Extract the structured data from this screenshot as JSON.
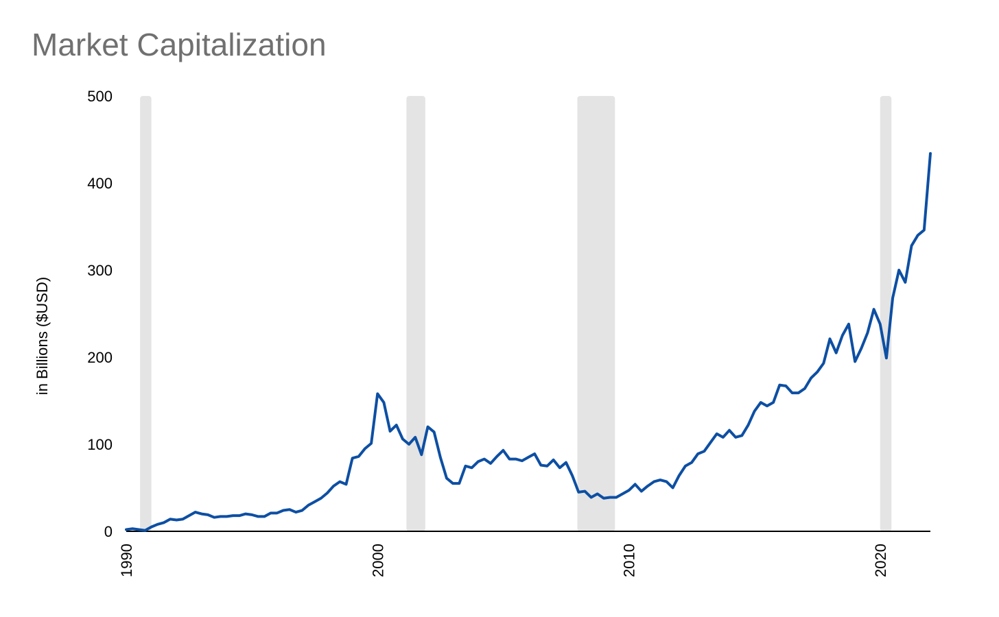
{
  "chart_data": {
    "type": "line",
    "title": "Market Capitalization",
    "xlabel": "",
    "ylabel": "in Billions ($USD)",
    "xlim": [
      1990,
      2022
    ],
    "ylim": [
      0,
      500
    ],
    "yticks": [
      0,
      100,
      200,
      300,
      400,
      500
    ],
    "xticks": [
      1990,
      2000,
      2010,
      2020
    ],
    "grid": false,
    "colors": {
      "line": "#0d4fa3",
      "recession": "#e4e4e4",
      "axis": "#000000"
    },
    "recessions": [
      {
        "start": 1990.55,
        "end": 1991.0
      },
      {
        "start": 2001.15,
        "end": 2001.9
      },
      {
        "start": 2007.95,
        "end": 2009.45
      },
      {
        "start": 2020.0,
        "end": 2020.45
      }
    ],
    "series": [
      {
        "x": [
          1990.0,
          1990.25,
          1990.5,
          1990.75,
          1991.0,
          1991.25,
          1991.5,
          1991.75,
          1992.0,
          1992.25,
          1992.5,
          1992.75,
          1993.0,
          1993.25,
          1993.5,
          1993.75,
          1994.0,
          1994.25,
          1994.5,
          1994.75,
          1995.0,
          1995.25,
          1995.5,
          1995.75,
          1996.0,
          1996.25,
          1996.5,
          1996.75,
          1997.0,
          1997.25,
          1997.5,
          1997.75,
          1998.0,
          1998.25,
          1998.5,
          1998.75,
          1999.0,
          1999.25,
          1999.5,
          1999.75,
          2000.0,
          2000.25,
          2000.5,
          2000.75,
          2001.0,
          2001.25,
          2001.5,
          2001.75,
          2002.0,
          2002.25,
          2002.5,
          2002.75,
          2003.0,
          2003.25,
          2003.5,
          2003.75,
          2004.0,
          2004.25,
          2004.5,
          2004.75,
          2005.0,
          2005.25,
          2005.5,
          2005.75,
          2006.0,
          2006.25,
          2006.5,
          2006.75,
          2007.0,
          2007.25,
          2007.5,
          2007.75,
          2008.0,
          2008.25,
          2008.5,
          2008.75,
          2009.0,
          2009.25,
          2009.5,
          2009.75,
          2010.0,
          2010.25,
          2010.5,
          2010.75,
          2011.0,
          2011.25,
          2011.5,
          2011.75,
          2012.0,
          2012.25,
          2012.5,
          2012.75,
          2013.0,
          2013.25,
          2013.5,
          2013.75,
          2014.0,
          2014.25,
          2014.5,
          2014.75,
          2015.0,
          2015.25,
          2015.5,
          2015.75,
          2016.0,
          2016.25,
          2016.5,
          2016.75,
          2017.0,
          2017.25,
          2017.5,
          2017.75,
          2018.0,
          2018.25,
          2018.5,
          2018.75,
          2019.0,
          2019.25,
          2019.5,
          2019.75,
          2020.0,
          2020.25,
          2020.5,
          2020.75,
          2021.0,
          2021.25,
          2021.5,
          2021.75,
          2022.0
        ],
        "values": [
          2,
          3,
          2,
          1,
          5,
          8,
          10,
          14,
          13,
          14,
          18,
          22,
          20,
          19,
          16,
          17,
          17,
          18,
          18,
          20,
          19,
          17,
          17,
          21,
          21,
          24,
          25,
          22,
          24,
          30,
          34,
          38,
          44,
          52,
          57,
          54,
          84,
          86,
          95,
          101,
          158,
          148,
          115,
          122,
          106,
          100,
          108,
          88,
          120,
          114,
          85,
          61,
          55,
          55,
          75,
          73,
          80,
          83,
          78,
          86,
          93,
          83,
          83,
          81,
          85,
          89,
          76,
          75,
          82,
          73,
          79,
          64,
          45,
          46,
          39,
          43,
          38,
          39,
          39,
          43,
          47,
          54,
          46,
          52,
          57,
          59,
          57,
          50,
          64,
          75,
          79,
          89,
          92,
          102,
          112,
          108,
          116,
          108,
          110,
          122,
          138,
          148,
          144,
          148,
          168,
          167,
          159,
          159,
          164,
          176,
          183,
          193,
          221,
          205,
          225,
          238,
          195,
          210,
          228,
          255,
          238,
          199,
          268,
          300,
          286,
          328,
          340,
          346,
          434
        ]
      }
    ]
  }
}
